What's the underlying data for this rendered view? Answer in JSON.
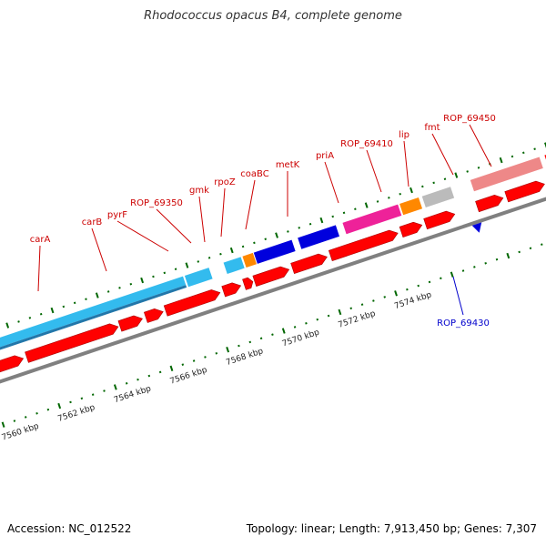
{
  "title": "Rhodococcus opacus B4, complete genome",
  "footer": {
    "accession_label": "Accession:",
    "accession": "NC_012522",
    "topology_label": "Topology:",
    "topology": "linear",
    "length_label": "Length:",
    "length": "7,913,450 bp",
    "genes_label": "Genes:",
    "genes": "7,307"
  },
  "colors": {
    "cds_arrow": "#ff0000",
    "label_forward": "#cc0000",
    "label_reverse": "#0000cc",
    "tick": "#006600",
    "backbone": "#808080"
  },
  "scale": {
    "labels": [
      "7560 kbp",
      "7562 kbp",
      "7564 kbp",
      "7566 kbp",
      "7568 kbp",
      "7570 kbp",
      "7572 kbp",
      "7574 kbp"
    ]
  },
  "genes": [
    {
      "name": "carA",
      "color": "#33bbee"
    },
    {
      "name": "carB",
      "color": "#33bbee"
    },
    {
      "name": "pyrF",
      "color": "#33bbee"
    },
    {
      "name": "ROP_69350",
      "color": "#33bbee"
    },
    {
      "name": "gmk",
      "color": "#33bbee"
    },
    {
      "name": "rpoZ",
      "color": "#ff8800"
    },
    {
      "name": "coaBC",
      "color": "#0000dd"
    },
    {
      "name": "metK",
      "color": "#0000dd"
    },
    {
      "name": "priA",
      "color": "#ee2299"
    },
    {
      "name": "ROP_69410",
      "color": "#ff8800"
    },
    {
      "name": "lip",
      "color": "#bbbbbb"
    },
    {
      "name": "fmt",
      "color": "#ee8888"
    },
    {
      "name": "ROP_69450",
      "color": "#ee8888"
    },
    {
      "name": "ROP_69430",
      "color": "#0000cc"
    }
  ]
}
